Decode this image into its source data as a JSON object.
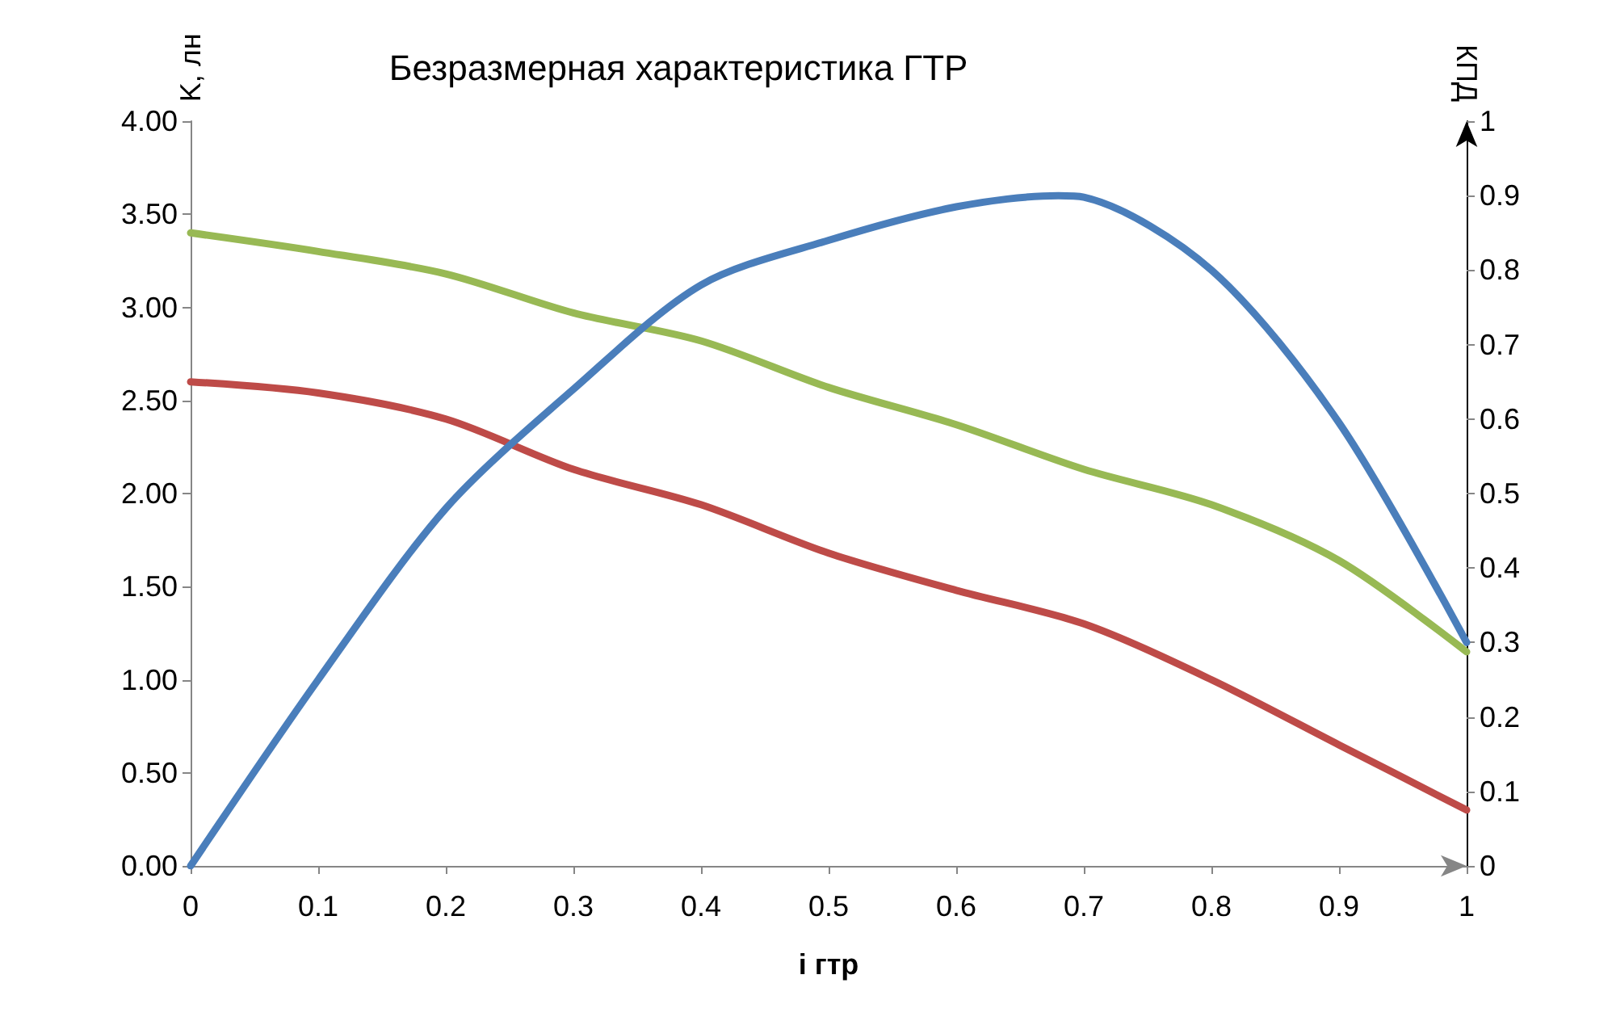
{
  "chart_data": {
    "type": "line",
    "title": "Безразмерная характеристика ГТР",
    "xlabel": "i гтр",
    "ylabel": "K, лн",
    "y2label": "КПД",
    "x": [
      0,
      0.1,
      0.2,
      0.3,
      0.4,
      0.5,
      0.6,
      0.7,
      0.8,
      0.9,
      1
    ],
    "series": [
      {
        "color": "#98b954",
        "values": [
          3.4,
          3.3,
          3.18,
          2.97,
          2.82,
          2.57,
          2.37,
          2.13,
          1.94,
          1.64,
          1.15
        ]
      },
      {
        "color": "#be4b48",
        "values": [
          2.6,
          2.54,
          2.4,
          2.13,
          1.94,
          1.68,
          1.48,
          1.3,
          1.0,
          0.65,
          0.3
        ]
      },
      {
        "color": "#4a7ebb",
        "axis": "y2",
        "x": [
          0,
          0.1,
          0.2,
          0.3,
          0.4,
          0.5,
          0.6,
          0.68,
          0.7,
          0.8,
          0.9,
          1
        ],
        "values": [
          0,
          0.25,
          0.48,
          0.64,
          0.78,
          0.84,
          0.885,
          0.9,
          0.898,
          0.8,
          0.595,
          0.3
        ]
      }
    ],
    "xlim": [
      0,
      1
    ],
    "xticks": [
      0,
      0.1,
      0.2,
      0.3,
      0.4,
      0.5,
      0.6,
      0.7,
      0.8,
      0.9,
      1
    ],
    "ylim": [
      0,
      4
    ],
    "yticks": [
      {
        "value": 0,
        "label": "0.00"
      },
      {
        "value": 0.5,
        "label": "0.50"
      },
      {
        "value": 1,
        "label": "1.00"
      },
      {
        "value": 1.5,
        "label": "1.50"
      },
      {
        "value": 2,
        "label": "2.00"
      },
      {
        "value": 2.5,
        "label": "2.50"
      },
      {
        "value": 3,
        "label": "3.00"
      },
      {
        "value": 3.5,
        "label": "3.50"
      },
      {
        "value": 4,
        "label": "4.00"
      }
    ],
    "y2lim": [
      0,
      1
    ],
    "y2ticks": [
      0,
      0.1,
      0.2,
      0.3,
      0.4,
      0.5,
      0.6,
      0.7,
      0.8,
      0.9,
      1
    ],
    "grid": false,
    "marker": "none",
    "line_style": "solid"
  }
}
